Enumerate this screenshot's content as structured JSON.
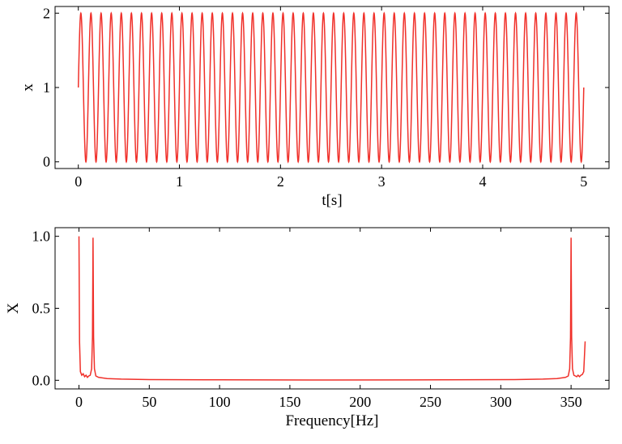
{
  "chart_data": [
    {
      "type": "line",
      "xlabel": "t[s]",
      "ylabel": "x",
      "xlim": [
        -0.23,
        5.25
      ],
      "ylim": [
        -0.09,
        2.09
      ],
      "xticks": [
        0,
        1,
        2,
        3,
        4,
        5
      ],
      "yticks": [
        0,
        1,
        2
      ],
      "grid": false,
      "line_color": "#f0302a",
      "signal": {
        "offset": 1,
        "amplitude": 1,
        "frequency_hz": 10,
        "t_start": 0,
        "t_end": 5
      }
    },
    {
      "type": "line",
      "xlabel": "Frequency[Hz]",
      "ylabel": "X",
      "xlim": [
        -17,
        377
      ],
      "ylim": [
        -0.06,
        1.06
      ],
      "xticks": [
        0,
        50,
        100,
        150,
        200,
        250,
        300,
        350
      ],
      "yticks": [
        0.0,
        0.5,
        1.0
      ],
      "ytick_labels": [
        "0.0",
        "0.5",
        "1.0"
      ],
      "grid": false,
      "line_color": "#f0302a",
      "points": [
        [
          0,
          1.0
        ],
        [
          0.4,
          0.27
        ],
        [
          1,
          0.06
        ],
        [
          2,
          0.035
        ],
        [
          3,
          0.045
        ],
        [
          4,
          0.025
        ],
        [
          5,
          0.035
        ],
        [
          6,
          0.02
        ],
        [
          7,
          0.03
        ],
        [
          8,
          0.035
        ],
        [
          9,
          0.08
        ],
        [
          9.6,
          0.3
        ],
        [
          10,
          0.99
        ],
        [
          10.4,
          0.3
        ],
        [
          11,
          0.08
        ],
        [
          12,
          0.03
        ],
        [
          14,
          0.02
        ],
        [
          20,
          0.012
        ],
        [
          30,
          0.008
        ],
        [
          50,
          0.005
        ],
        [
          100,
          0.003
        ],
        [
          180,
          0.002
        ],
        [
          260,
          0.003
        ],
        [
          310,
          0.005
        ],
        [
          330,
          0.008
        ],
        [
          340,
          0.012
        ],
        [
          346,
          0.02
        ],
        [
          348,
          0.03
        ],
        [
          349,
          0.08
        ],
        [
          349.6,
          0.3
        ],
        [
          350,
          0.99
        ],
        [
          350.4,
          0.3
        ],
        [
          351,
          0.08
        ],
        [
          352,
          0.035
        ],
        [
          353,
          0.03
        ],
        [
          354,
          0.025
        ],
        [
          355,
          0.035
        ],
        [
          356,
          0.025
        ],
        [
          357,
          0.035
        ],
        [
          358,
          0.04
        ],
        [
          359,
          0.06
        ],
        [
          360,
          0.27
        ]
      ]
    }
  ]
}
